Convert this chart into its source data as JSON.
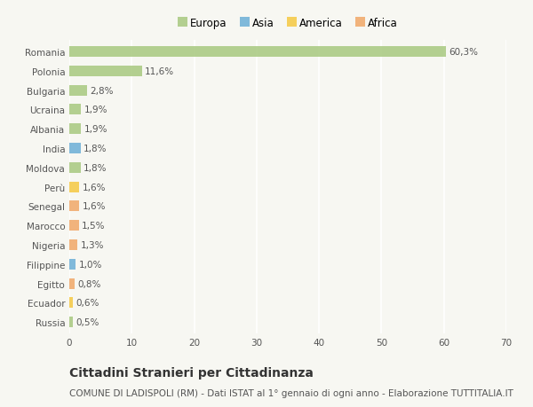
{
  "countries": [
    "Romania",
    "Polonia",
    "Bulgaria",
    "Ucraina",
    "Albania",
    "India",
    "Moldova",
    "Perù",
    "Senegal",
    "Marocco",
    "Nigeria",
    "Filippine",
    "Egitto",
    "Ecuador",
    "Russia"
  ],
  "values": [
    60.3,
    11.6,
    2.8,
    1.9,
    1.9,
    1.8,
    1.8,
    1.6,
    1.6,
    1.5,
    1.3,
    1.0,
    0.8,
    0.6,
    0.5
  ],
  "labels": [
    "60,3%",
    "11,6%",
    "2,8%",
    "1,9%",
    "1,9%",
    "1,8%",
    "1,8%",
    "1,6%",
    "1,6%",
    "1,5%",
    "1,3%",
    "1,0%",
    "0,8%",
    "0,6%",
    "0,5%"
  ],
  "continents": [
    "Europa",
    "Europa",
    "Europa",
    "Europa",
    "Europa",
    "Asia",
    "Europa",
    "America",
    "Africa",
    "Africa",
    "Africa",
    "Asia",
    "Africa",
    "America",
    "Europa"
  ],
  "continent_colors": {
    "Europa": "#a8c97f",
    "Asia": "#6baed6",
    "America": "#f5c842",
    "Africa": "#f0a868"
  },
  "legend_entries": [
    "Europa",
    "Asia",
    "America",
    "Africa"
  ],
  "legend_colors": [
    "#a8c97f",
    "#6baed6",
    "#f5c842",
    "#f0a868"
  ],
  "xlim": [
    0,
    70
  ],
  "xticks": [
    0,
    10,
    20,
    30,
    40,
    50,
    60,
    70
  ],
  "title": "Cittadini Stranieri per Cittadinanza",
  "subtitle": "COMUNE DI LADISPOLI (RM) - Dati ISTAT al 1° gennaio di ogni anno - Elaborazione TUTTITALIA.IT",
  "bg_color": "#f7f7f2",
  "bar_height": 0.55,
  "grid_color": "#ffffff",
  "title_fontsize": 10,
  "subtitle_fontsize": 7.5,
  "label_fontsize": 7.5,
  "tick_fontsize": 7.5,
  "legend_fontsize": 8.5
}
